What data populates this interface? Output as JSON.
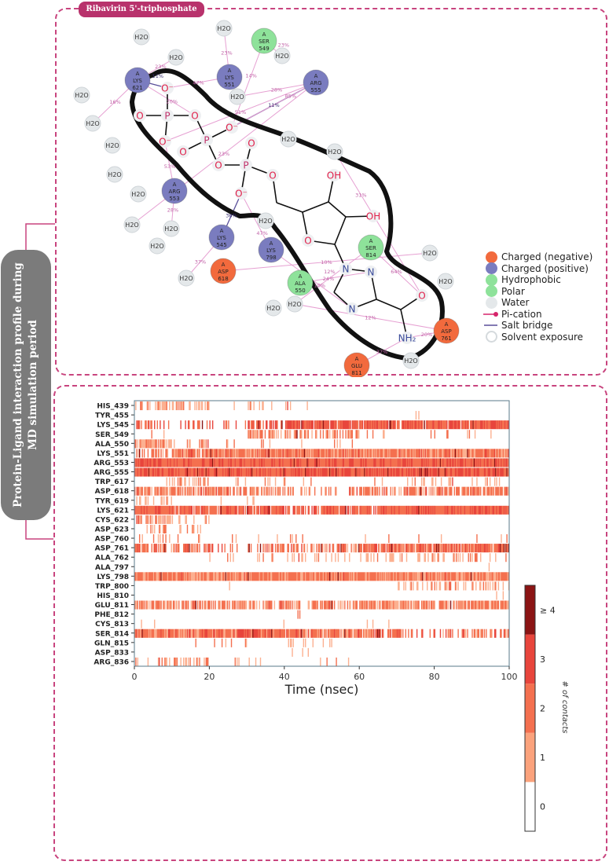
{
  "title": "Ribavirin 5'-triphosphate",
  "side_label": "Protein-Ligand interaction profile during MD simulation period",
  "colors": {
    "accent": "#c8447e",
    "pill": "#b8326c",
    "side_box": "#7b7b7b",
    "negative": "#f26a3d",
    "positive": "#7a7cbf",
    "hydrophobic": "#8ee29a",
    "polar": "#8ee29a",
    "water": "#e4e8ea",
    "pi_cation": "#d6246a",
    "salt_bridge": "#5a4f9a"
  },
  "diagram": {
    "residues": [
      {
        "chain": "A",
        "name": "LYS",
        "num": "621",
        "type": "positive"
      },
      {
        "chain": "A",
        "name": "LYS",
        "num": "551",
        "type": "positive"
      },
      {
        "chain": "A",
        "name": "SER",
        "num": "549",
        "type": "polar"
      },
      {
        "chain": "A",
        "name": "ARG",
        "num": "555",
        "type": "positive"
      },
      {
        "chain": "A",
        "name": "ARG",
        "num": "553",
        "type": "positive"
      },
      {
        "chain": "A",
        "name": "LYS",
        "num": "545",
        "type": "positive"
      },
      {
        "chain": "A",
        "name": "LYS",
        "num": "798",
        "type": "positive"
      },
      {
        "chain": "A",
        "name": "ASP",
        "num": "618",
        "type": "negative"
      },
      {
        "chain": "A",
        "name": "ALA",
        "num": "550",
        "type": "hydrophobic"
      },
      {
        "chain": "A",
        "name": "SER",
        "num": "814",
        "type": "polar"
      },
      {
        "chain": "A",
        "name": "GLU",
        "num": "811",
        "type": "negative"
      },
      {
        "chain": "A",
        "name": "ASP",
        "num": "761",
        "type": "negative"
      }
    ],
    "water_label": "H2O",
    "atoms": {
      "O": "O",
      "O_minus": "O⁻",
      "P": "P",
      "N": "N",
      "OH": "OH",
      "NH2": "NH₂"
    },
    "interactions": [
      {
        "from": "LYS 621",
        "to": "O1",
        "label": "11%",
        "kind": "salt_bridge"
      },
      {
        "from": "ARG 555",
        "to": "O5",
        "label": "11%",
        "kind": "salt_bridge"
      },
      {
        "from": "ARG 555",
        "to": "O5",
        "label": "85%",
        "kind": "hbond"
      },
      {
        "from": "LYS 545",
        "to": "O9",
        "label": "36%",
        "kind": "salt_bridge"
      },
      {
        "from": "LYS 551",
        "to": "O1",
        "label": "47%",
        "kind": "hbond"
      },
      {
        "from": "ARG 553",
        "to": "O4",
        "label": "53%",
        "kind": "hbond"
      },
      {
        "from": "LYS 798",
        "to": "O9",
        "label": "47%",
        "kind": "hbond"
      },
      {
        "from": "ARG 555",
        "to": "O4",
        "label": "51%",
        "kind": "hbond"
      },
      {
        "from": "LYS 621",
        "to": "O3",
        "label": "20%",
        "kind": "hbond"
      },
      {
        "from": "SER 814",
        "to": "Oc",
        "label": "64%",
        "kind": "hbond"
      },
      {
        "from": "SER 549",
        "to": "O5",
        "label": "14%",
        "kind": "hbond"
      },
      {
        "from": "ALA 550",
        "to": "N2",
        "label": "24%",
        "kind": "hbond"
      },
      {
        "from": "GLU 811",
        "to": "NH2",
        "label": "37%",
        "kind": "hbond"
      },
      {
        "from": "ASP 761",
        "to": "NH2",
        "label": "20%",
        "kind": "hbond"
      },
      {
        "from": "ASP 618",
        "to": "W17",
        "label": "10%",
        "kind": "hbond"
      },
      {
        "from": "LYS 545",
        "to": "W14",
        "label": "37%",
        "kind": "hbond"
      },
      {
        "from": "SER 814",
        "to": "W19",
        "label": "12%",
        "kind": "hbond"
      },
      {
        "from": "LYS 798",
        "to": "N4",
        "label": "10%",
        "kind": "hbond"
      },
      {
        "from": "LYS 621",
        "to": "W6",
        "label": "16%",
        "kind": "hbond"
      },
      {
        "from": "LYS 621",
        "to": "W1",
        "label": "23%",
        "kind": "hbond"
      },
      {
        "from": "LYS 551",
        "to": "W2",
        "label": "23%",
        "kind": "hbond"
      },
      {
        "from": "SER 549",
        "to": "W3",
        "label": "23%",
        "kind": "hbond"
      },
      {
        "from": "ARG 555",
        "to": "W4",
        "label": "28%",
        "kind": "hbond"
      },
      {
        "from": "ARG 555",
        "to": "W11",
        "label": "23%",
        "kind": "hbond"
      },
      {
        "from": "ARG 553",
        "to": "W12",
        "label": "28%",
        "kind": "hbond"
      },
      {
        "from": "W20",
        "to": "Oc",
        "label": "31%",
        "kind": "hbond"
      },
      {
        "from": "W22",
        "to": "GLU 811",
        "label": "24%",
        "kind": "hbond"
      },
      {
        "from": "W19",
        "to": "ASP 761",
        "label": "12%",
        "kind": "hbond"
      }
    ],
    "legend": [
      {
        "label": "Charged (negative)",
        "symbol": "negative"
      },
      {
        "label": "Charged (positive)",
        "symbol": "positive"
      },
      {
        "label": "Hydrophobic",
        "symbol": "hydrophobic"
      },
      {
        "label": "Polar",
        "symbol": "polar"
      },
      {
        "label": "Water",
        "symbol": "water"
      },
      {
        "label": "Pi-cation",
        "symbol": "pi_cation"
      },
      {
        "label": "Salt bridge",
        "symbol": "salt_bridge"
      },
      {
        "label": "Solvent exposure",
        "symbol": "solvent"
      }
    ]
  },
  "chart_data": {
    "type": "heatmap",
    "xlabel": "Time (nsec)",
    "xlim": [
      0,
      100
    ],
    "xticks": [
      0,
      20,
      40,
      60,
      80,
      100
    ],
    "time_bins_nsec": [
      0,
      10,
      20,
      30,
      40,
      50,
      60,
      70,
      80,
      90
    ],
    "colorbar": {
      "label": "# of contacts",
      "ticks": [
        "0",
        "1",
        "2",
        "3",
        "≥ 4"
      ],
      "colors": [
        "#ffffff",
        "#fba27c",
        "#f4704f",
        "#e8453c",
        "#8b1414"
      ]
    },
    "rows": [
      {
        "residue": "HIS_439",
        "occupancy": [
          0.5,
          0.4,
          0.05,
          0.2,
          0.05,
          0,
          0.02,
          0,
          0,
          0
        ],
        "typical_contacts": 1
      },
      {
        "residue": "TYR_455",
        "occupancy": [
          0,
          0,
          0,
          0,
          0,
          0,
          0,
          0.02,
          0,
          0
        ],
        "typical_contacts": 1
      },
      {
        "residue": "LYS_545",
        "occupancy": [
          0.5,
          0.3,
          0.2,
          0.5,
          0.9,
          0.9,
          0.95,
          0.9,
          0.95,
          0.95
        ],
        "typical_contacts": 2.4
      },
      {
        "residue": "SER_549",
        "occupancy": [
          0.05,
          0,
          0.05,
          0.5,
          0.5,
          0.6,
          0.1,
          0.05,
          0.1,
          0.1
        ],
        "typical_contacts": 1.5
      },
      {
        "residue": "ALA_550",
        "occupancy": [
          0.8,
          0.3,
          0.1,
          0.1,
          0.05,
          0.1,
          0.02,
          0,
          0,
          0
        ],
        "typical_contacts": 1.2
      },
      {
        "residue": "LYS_551",
        "occupancy": [
          0.6,
          0.9,
          1,
          1,
          1,
          1,
          1,
          1,
          1,
          1
        ],
        "typical_contacts": 1.8
      },
      {
        "residue": "ARG_553",
        "occupancy": [
          1,
          1,
          1,
          1,
          1,
          1,
          1,
          1,
          1,
          1
        ],
        "typical_contacts": 2.3
      },
      {
        "residue": "ARG_555",
        "occupancy": [
          1,
          1,
          1,
          1,
          1,
          1,
          1,
          1,
          1,
          1
        ],
        "typical_contacts": 2.5
      },
      {
        "residue": "TRP_617",
        "occupancy": [
          0.05,
          0.4,
          0.1,
          0.1,
          0.05,
          0,
          0.05,
          0.1,
          0.2,
          0.2
        ],
        "typical_contacts": 1
      },
      {
        "residue": "ASP_618",
        "occupancy": [
          0.9,
          0.8,
          0.7,
          0.7,
          0.3,
          0.4,
          0.6,
          0.6,
          0.8,
          0.9
        ],
        "typical_contacts": 1.8
      },
      {
        "residue": "TYR_619",
        "occupancy": [
          0.3,
          0,
          0.02,
          0.02,
          0,
          0,
          0,
          0,
          0,
          0
        ],
        "typical_contacts": 1
      },
      {
        "residue": "LYS_621",
        "occupancy": [
          1,
          0.9,
          0.9,
          0.8,
          0.6,
          0.9,
          0.9,
          1,
          1,
          1
        ],
        "typical_contacts": 2.3
      },
      {
        "residue": "CYS_622",
        "occupancy": [
          0.5,
          0.1,
          0,
          0,
          0,
          0,
          0,
          0,
          0,
          0
        ],
        "typical_contacts": 1.2
      },
      {
        "residue": "ASP_623",
        "occupancy": [
          0.3,
          0.1,
          0,
          0,
          0,
          0,
          0,
          0,
          0,
          0
        ],
        "typical_contacts": 1.2
      },
      {
        "residue": "ASP_760",
        "occupancy": [
          0.3,
          0.1,
          0.05,
          0.05,
          0.1,
          0.05,
          0.05,
          0.05,
          0.05,
          0.05
        ],
        "typical_contacts": 1.5
      },
      {
        "residue": "ASP_761",
        "occupancy": [
          0.7,
          0.6,
          0.3,
          0.4,
          0.5,
          0.6,
          0.9,
          0.9,
          0.95,
          0.95
        ],
        "typical_contacts": 2
      },
      {
        "residue": "ALA_762",
        "occupancy": [
          0,
          0,
          0.1,
          0.1,
          0.15,
          0.2,
          0.2,
          0.25,
          0.25,
          0.2
        ],
        "typical_contacts": 1
      },
      {
        "residue": "ALA_797",
        "occupancy": [
          0,
          0,
          0,
          0,
          0,
          0,
          0,
          0,
          0,
          0.05
        ],
        "typical_contacts": 1
      },
      {
        "residue": "LYS_798",
        "occupancy": [
          1,
          1,
          1,
          1,
          1,
          1,
          1,
          1,
          1,
          1
        ],
        "typical_contacts": 1.7
      },
      {
        "residue": "TRP_800",
        "occupancy": [
          0,
          0,
          0.02,
          0,
          0.02,
          0,
          0,
          0.3,
          0.3,
          0.3
        ],
        "typical_contacts": 1.1
      },
      {
        "residue": "HIS_810",
        "occupancy": [
          0,
          0,
          0,
          0,
          0,
          0,
          0,
          0,
          0,
          0.1
        ],
        "typical_contacts": 1
      },
      {
        "residue": "GLU_811",
        "occupancy": [
          0.8,
          0.7,
          0.7,
          0.7,
          0.6,
          0.7,
          0.8,
          0.8,
          0.8,
          0.8
        ],
        "typical_contacts": 1.7
      },
      {
        "residue": "PHE_812",
        "occupancy": [
          0,
          0,
          0,
          0,
          0.03,
          0,
          0,
          0,
          0,
          0
        ],
        "typical_contacts": 1
      },
      {
        "residue": "CYS_813",
        "occupancy": [
          0.02,
          0,
          0.02,
          0.02,
          0,
          0,
          0.03,
          0,
          0,
          0
        ],
        "typical_contacts": 1
      },
      {
        "residue": "SER_814",
        "occupancy": [
          1,
          1,
          1,
          1,
          0.9,
          0.9,
          0.8,
          0.3,
          0.4,
          0.5
        ],
        "typical_contacts": 2
      },
      {
        "residue": "GLN_815",
        "occupancy": [
          0,
          0.03,
          0.1,
          0,
          0.1,
          0.05,
          0,
          0,
          0,
          0
        ],
        "typical_contacts": 1
      },
      {
        "residue": "ASP_833",
        "occupancy": [
          0,
          0,
          0,
          0,
          0.05,
          0.05,
          0,
          0,
          0,
          0
        ],
        "typical_contacts": 1
      },
      {
        "residue": "ARG_836",
        "occupancy": [
          0.3,
          0.5,
          0.1,
          0.05,
          0.05,
          0.05,
          0,
          0,
          0,
          0
        ],
        "typical_contacts": 1.2
      }
    ]
  }
}
